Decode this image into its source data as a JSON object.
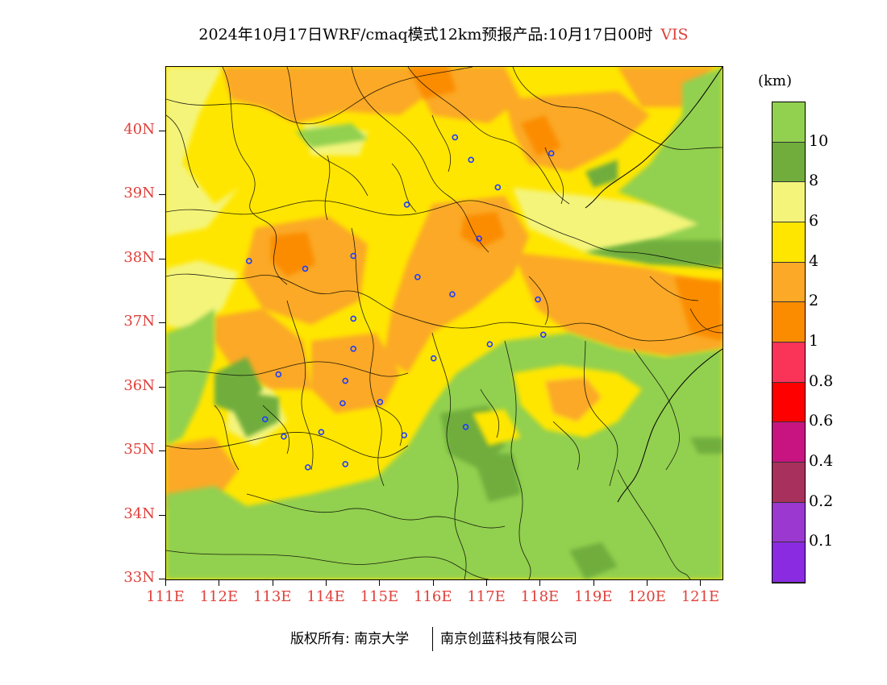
{
  "title": {
    "main": "2024年10月17日WRF/cmaq模式12km预报产品:10月17日00时",
    "variable": "VIS"
  },
  "map": {
    "lat_labels": [
      "40N",
      "39N",
      "38N",
      "37N",
      "36N",
      "35N",
      "34N",
      "33N"
    ],
    "lon_labels": [
      "111E",
      "112E",
      "113E",
      "114E",
      "115E",
      "116E",
      "117E",
      "118E",
      "119E",
      "120E",
      "121E"
    ],
    "lon_range": [
      111,
      121.4
    ],
    "lat_range": [
      33,
      41
    ],
    "fill_colors": {
      "ge10": "#92d050",
      "8_10": "#70ad3c",
      "6_8": "#f4f47a",
      "4_6": "#ffe600",
      "2_4": "#fba927",
      "1_2": "#fb8c00"
    },
    "city_markers": [
      [
        116.4,
        39.9
      ],
      [
        116.7,
        39.55
      ],
      [
        117.2,
        39.12
      ],
      [
        118.2,
        39.65
      ],
      [
        115.5,
        38.85
      ],
      [
        116.85,
        38.32
      ],
      [
        112.55,
        37.97
      ],
      [
        113.6,
        37.85
      ],
      [
        114.5,
        38.05
      ],
      [
        115.7,
        37.72
      ],
      [
        116.35,
        37.45
      ],
      [
        114.5,
        37.07
      ],
      [
        117.95,
        37.37
      ],
      [
        118.05,
        36.82
      ],
      [
        114.5,
        36.6
      ],
      [
        116.0,
        36.45
      ],
      [
        117.05,
        36.67
      ],
      [
        113.1,
        36.2
      ],
      [
        114.35,
        36.1
      ],
      [
        112.85,
        35.5
      ],
      [
        114.3,
        35.75
      ],
      [
        115.0,
        35.77
      ],
      [
        113.2,
        35.23
      ],
      [
        113.9,
        35.3
      ],
      [
        115.45,
        35.25
      ],
      [
        116.6,
        35.38
      ],
      [
        114.35,
        34.8
      ],
      [
        113.65,
        34.75
      ]
    ]
  },
  "colorbar": {
    "unit": "(km)",
    "levels": [
      {
        "label": "",
        "color": "#92d050"
      },
      {
        "label": "10",
        "color": "#70ad3c"
      },
      {
        "label": "8",
        "color": "#f4f47a"
      },
      {
        "label": "6",
        "color": "#ffe600"
      },
      {
        "label": "4",
        "color": "#fba927"
      },
      {
        "label": "2",
        "color": "#fb8c00"
      },
      {
        "label": "1",
        "color": "#fa3358"
      },
      {
        "label": "0.8",
        "color": "#ff0000"
      },
      {
        "label": "0.6",
        "color": "#c81480"
      },
      {
        "label": "0.4",
        "color": "#a8305c"
      },
      {
        "label": "0.2",
        "color": "#9a38d0"
      },
      {
        "label": "0.1",
        "color": "#8a2be2"
      }
    ]
  },
  "footer": {
    "copyright": "版权所有: 南京大学",
    "company": "南京创蓝科技有限公司"
  }
}
